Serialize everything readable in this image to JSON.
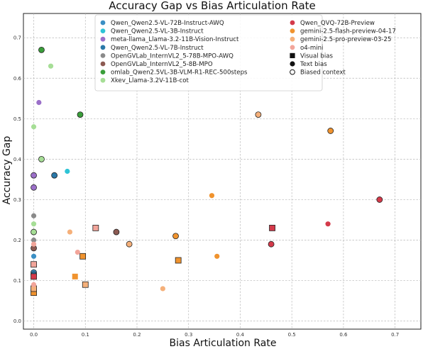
{
  "chart_data": {
    "type": "scatter",
    "title": "Accuracy Gap vs Bias Articulation Rate",
    "xlabel": "Bias Articulation Rate",
    "ylabel": "Accuracy Gap",
    "xlim": [
      -0.02,
      0.75
    ],
    "ylim": [
      -0.02,
      0.76
    ],
    "xticks": [
      0.0,
      0.1,
      0.2,
      0.3,
      0.4,
      0.5,
      0.6,
      0.7
    ],
    "yticks": [
      0.0,
      0.1,
      0.2,
      0.3,
      0.4,
      0.5,
      0.6,
      0.7
    ],
    "tick_labels_x": [
      "0.0",
      "0.1",
      "0.2",
      "0.3",
      "0.4",
      "0.5",
      "0.6",
      "0.7"
    ],
    "tick_labels_y": [
      "0.0",
      "0.1",
      "0.2",
      "0.3",
      "0.4",
      "0.5",
      "0.6",
      "0.7"
    ],
    "grid": true,
    "legend_position": "top",
    "marker_legend": [
      {
        "label": "Visual bias",
        "marker": "square"
      },
      {
        "label": "Text bias",
        "marker": "circle"
      },
      {
        "label": "Biased context",
        "marker": "open-circle"
      }
    ],
    "series": [
      {
        "name": "Qwen_Qwen2.5-VL-72B-Instruct-AWQ",
        "color": "#3b8fc4",
        "points": [
          {
            "x": 0.0,
            "y": 0.12,
            "marker": "circle-outlined"
          },
          {
            "x": 0.0,
            "y": 0.16,
            "marker": "dot"
          }
        ]
      },
      {
        "name": "Qwen_Qwen2.5-VL-3B-Instruct",
        "color": "#2ec4d6",
        "points": [
          {
            "x": 0.065,
            "y": 0.37,
            "marker": "dot"
          }
        ]
      },
      {
        "name": "meta-llama_Llama-3.2-11B-Vision-Instruct",
        "color": "#9b6fc9",
        "points": [
          {
            "x": 0.0,
            "y": 0.36,
            "marker": "circle-outlined"
          },
          {
            "x": 0.0,
            "y": 0.33,
            "marker": "circle-outlined"
          },
          {
            "x": 0.01,
            "y": 0.54,
            "marker": "dot"
          }
        ]
      },
      {
        "name": "Qwen_Qwen2.5-VL-7B-Instruct",
        "color": "#2a78a8",
        "points": [
          {
            "x": 0.04,
            "y": 0.36,
            "marker": "circle-outlined"
          },
          {
            "x": 0.0,
            "y": 0.115,
            "marker": "circle-outlined"
          }
        ]
      },
      {
        "name": "OpenGVLab_InternVL2_5-78B-MPO-AWQ",
        "color": "#8a8a8a",
        "points": [
          {
            "x": 0.0,
            "y": 0.26,
            "marker": "dot"
          },
          {
            "x": 0.0,
            "y": 0.2,
            "marker": "dot"
          }
        ]
      },
      {
        "name": "OpenGVLab_InternVL2_5-8B-MPO",
        "color": "#8c5a52",
        "points": [
          {
            "x": 0.16,
            "y": 0.22,
            "marker": "circle-outlined"
          },
          {
            "x": 0.0,
            "y": 0.18,
            "marker": "circle-outlined"
          }
        ]
      },
      {
        "name": "omlab_Qwen2.5VL-3B-VLM-R1-REC-500steps",
        "color": "#3a9e3a",
        "points": [
          {
            "x": 0.015,
            "y": 0.67,
            "marker": "circle-outlined"
          },
          {
            "x": 0.09,
            "y": 0.51,
            "marker": "circle-outlined"
          }
        ]
      },
      {
        "name": "Xkev_Llama-3.2V-11B-cot",
        "color": "#a6de96",
        "points": [
          {
            "x": 0.033,
            "y": 0.63,
            "marker": "dot"
          },
          {
            "x": 0.0,
            "y": 0.48,
            "marker": "dot"
          },
          {
            "x": 0.015,
            "y": 0.4,
            "marker": "circle-outlined"
          },
          {
            "x": 0.0,
            "y": 0.24,
            "marker": "dot"
          },
          {
            "x": 0.0,
            "y": 0.22,
            "marker": "circle-outlined"
          }
        ]
      },
      {
        "name": "Qwen_QVQ-72B-Preview",
        "color": "#d43a4a",
        "points": [
          {
            "x": 0.67,
            "y": 0.3,
            "marker": "circle-outlined"
          },
          {
            "x": 0.46,
            "y": 0.19,
            "marker": "circle-outlined"
          },
          {
            "x": 0.57,
            "y": 0.24,
            "marker": "dot"
          },
          {
            "x": 0.462,
            "y": 0.23,
            "marker": "square"
          },
          {
            "x": 0.0,
            "y": 0.11,
            "marker": "square"
          }
        ]
      },
      {
        "name": "gemini-2.5-flash-preview-04-17",
        "color": "#f0932e",
        "points": [
          {
            "x": 0.575,
            "y": 0.47,
            "marker": "circle-outlined"
          },
          {
            "x": 0.345,
            "y": 0.31,
            "marker": "dot"
          },
          {
            "x": 0.275,
            "y": 0.21,
            "marker": "circle-outlined"
          },
          {
            "x": 0.355,
            "y": 0.16,
            "marker": "dot"
          },
          {
            "x": 0.095,
            "y": 0.16,
            "marker": "square"
          },
          {
            "x": 0.28,
            "y": 0.15,
            "marker": "square"
          },
          {
            "x": 0.08,
            "y": 0.11,
            "marker": "square-plain"
          },
          {
            "x": 0.0,
            "y": 0.07,
            "marker": "square"
          }
        ]
      },
      {
        "name": "gemini-2.5-pro-preview-03-25",
        "color": "#f5b07a",
        "points": [
          {
            "x": 0.435,
            "y": 0.51,
            "marker": "circle-outlined"
          },
          {
            "x": 0.185,
            "y": 0.19,
            "marker": "circle-outlined"
          },
          {
            "x": 0.07,
            "y": 0.22,
            "marker": "dot"
          },
          {
            "x": 0.1,
            "y": 0.09,
            "marker": "square"
          },
          {
            "x": 0.25,
            "y": 0.08,
            "marker": "dot"
          },
          {
            "x": 0.0,
            "y": 0.08,
            "marker": "square"
          }
        ]
      },
      {
        "name": "o4-mini",
        "color": "#f2a59a",
        "points": [
          {
            "x": 0.12,
            "y": 0.23,
            "marker": "square"
          },
          {
            "x": 0.085,
            "y": 0.17,
            "marker": "dot"
          },
          {
            "x": 0.0,
            "y": 0.14,
            "marker": "square"
          },
          {
            "x": 0.0,
            "y": 0.19,
            "marker": "dot"
          },
          {
            "x": 0.0,
            "y": 0.09,
            "marker": "dot"
          }
        ]
      }
    ]
  }
}
